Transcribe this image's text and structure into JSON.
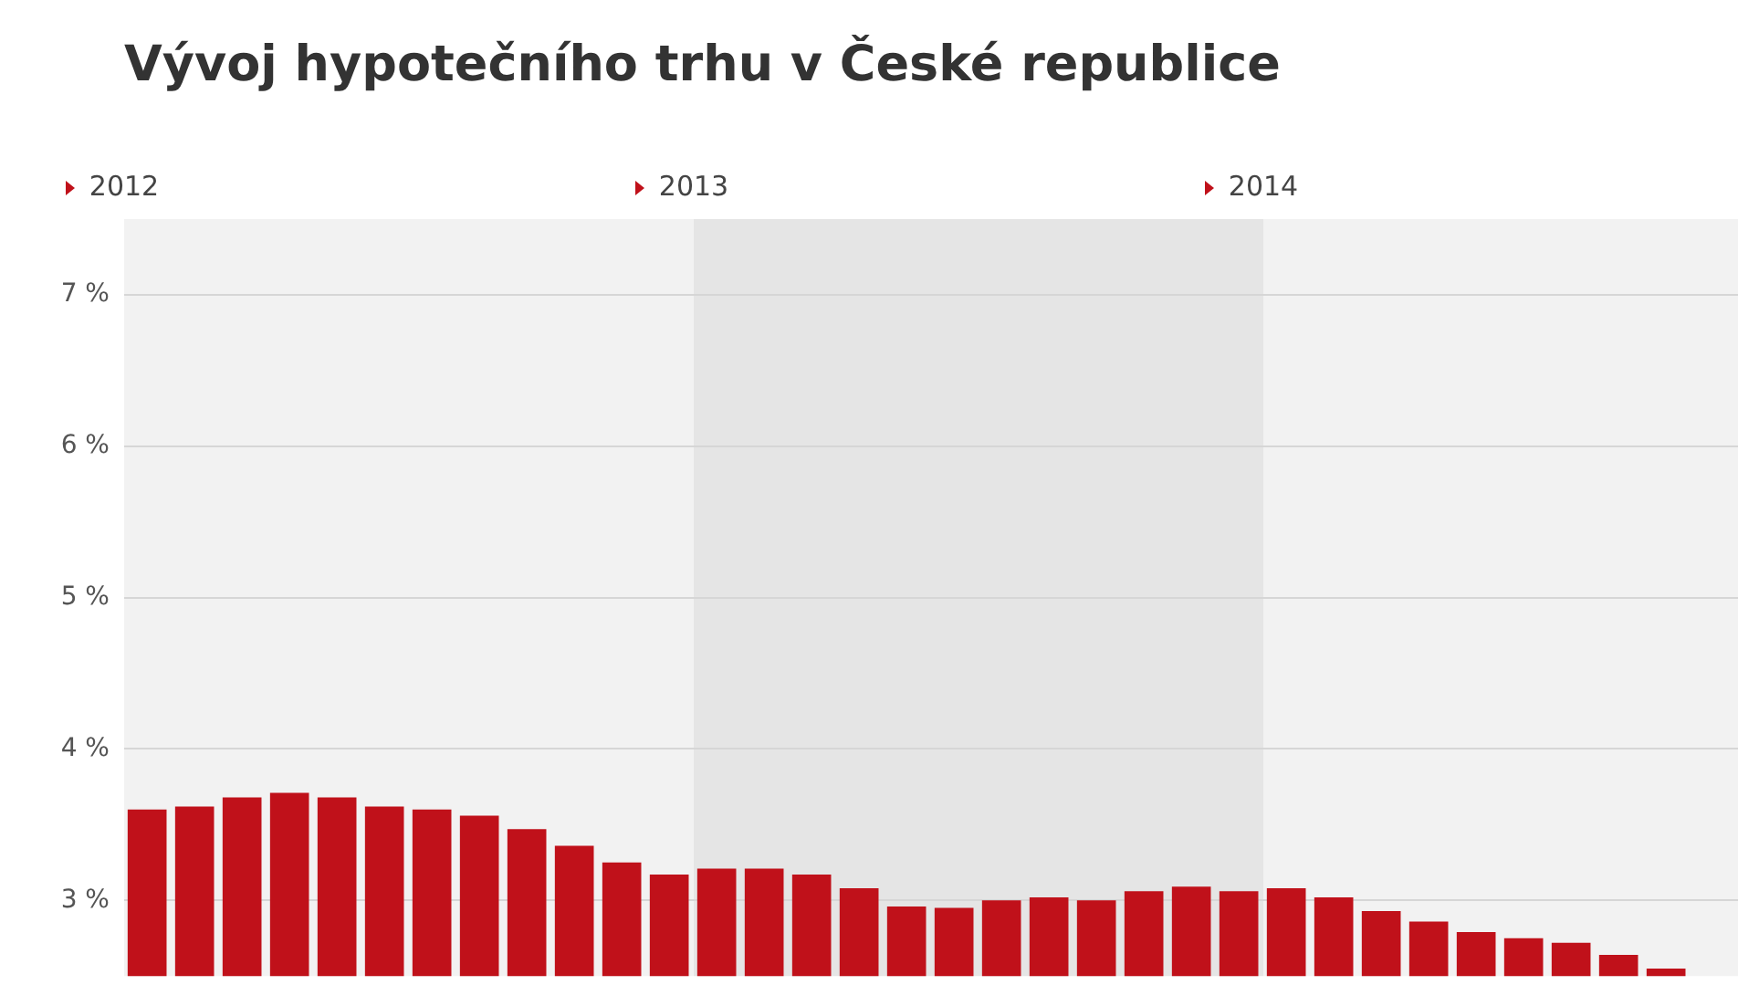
{
  "chart_data": {
    "type": "bar",
    "title": "Vývoj hypotečního trhu v České republice",
    "x": [
      "2012-01-16",
      "2012-02-16",
      "2012-03-16",
      "2012-04-16",
      "2012-05-16",
      "2012-06-16",
      "2012-07-16",
      "2012-08-16",
      "2012-09-16",
      "2012-10-16",
      "2012-11-16",
      "2012-12-16",
      "2013-01-16",
      "2013-02-16",
      "2013-03-16",
      "2013-04-16",
      "2013-05-16",
      "2013-06-16",
      "2013-07-16",
      "2013-08-16",
      "2013-09-16",
      "2013-10-16",
      "2013-11-16",
      "2013-12-16",
      "2014-01-16",
      "2014-02-16",
      "2014-03-16",
      "2014-04-16",
      "2014-05-16",
      "2014-06-16",
      "2014-07-16",
      "2014-08-16",
      "2014-09-16"
    ],
    "values": [
      3.6,
      3.62,
      3.68,
      3.71,
      3.68,
      3.62,
      3.6,
      3.56,
      3.47,
      3.36,
      3.25,
      3.17,
      3.21,
      3.21,
      3.17,
      3.08,
      2.96,
      2.95,
      3.0,
      3.02,
      3.0,
      3.06,
      3.09,
      3.06,
      3.08,
      3.02,
      2.93,
      2.86,
      2.79,
      2.75,
      2.72,
      2.64,
      2.55
    ],
    "color": "#c0111a",
    "xlim": [
      "2012-01",
      "2014-11"
    ],
    "xticks": [
      {
        "value": "2012-01",
        "label": "2012"
      },
      {
        "value": "2013-01",
        "label": "2013"
      },
      {
        "value": "2014-01",
        "label": "2014"
      }
    ],
    "ylim": [
      2.5,
      7.5
    ],
    "yticks": [
      {
        "value": 3,
        "label": "3 %"
      },
      {
        "value": 4,
        "label": "4 %"
      },
      {
        "value": 5,
        "label": "5 %"
      },
      {
        "value": 6,
        "label": "6 %"
      },
      {
        "value": 7,
        "label": "7 %"
      }
    ],
    "grid": "y",
    "bands": [
      {
        "axis": "x",
        "from": "2012-01",
        "to": "2013-01",
        "color": "#f2f2f2"
      },
      {
        "axis": "x",
        "from": "2013-01",
        "to": "2014-01",
        "color": "#e5e5e5"
      },
      {
        "axis": "x",
        "from": "2014-01",
        "to": "2014-11",
        "color": "#f2f2f2"
      }
    ]
  }
}
